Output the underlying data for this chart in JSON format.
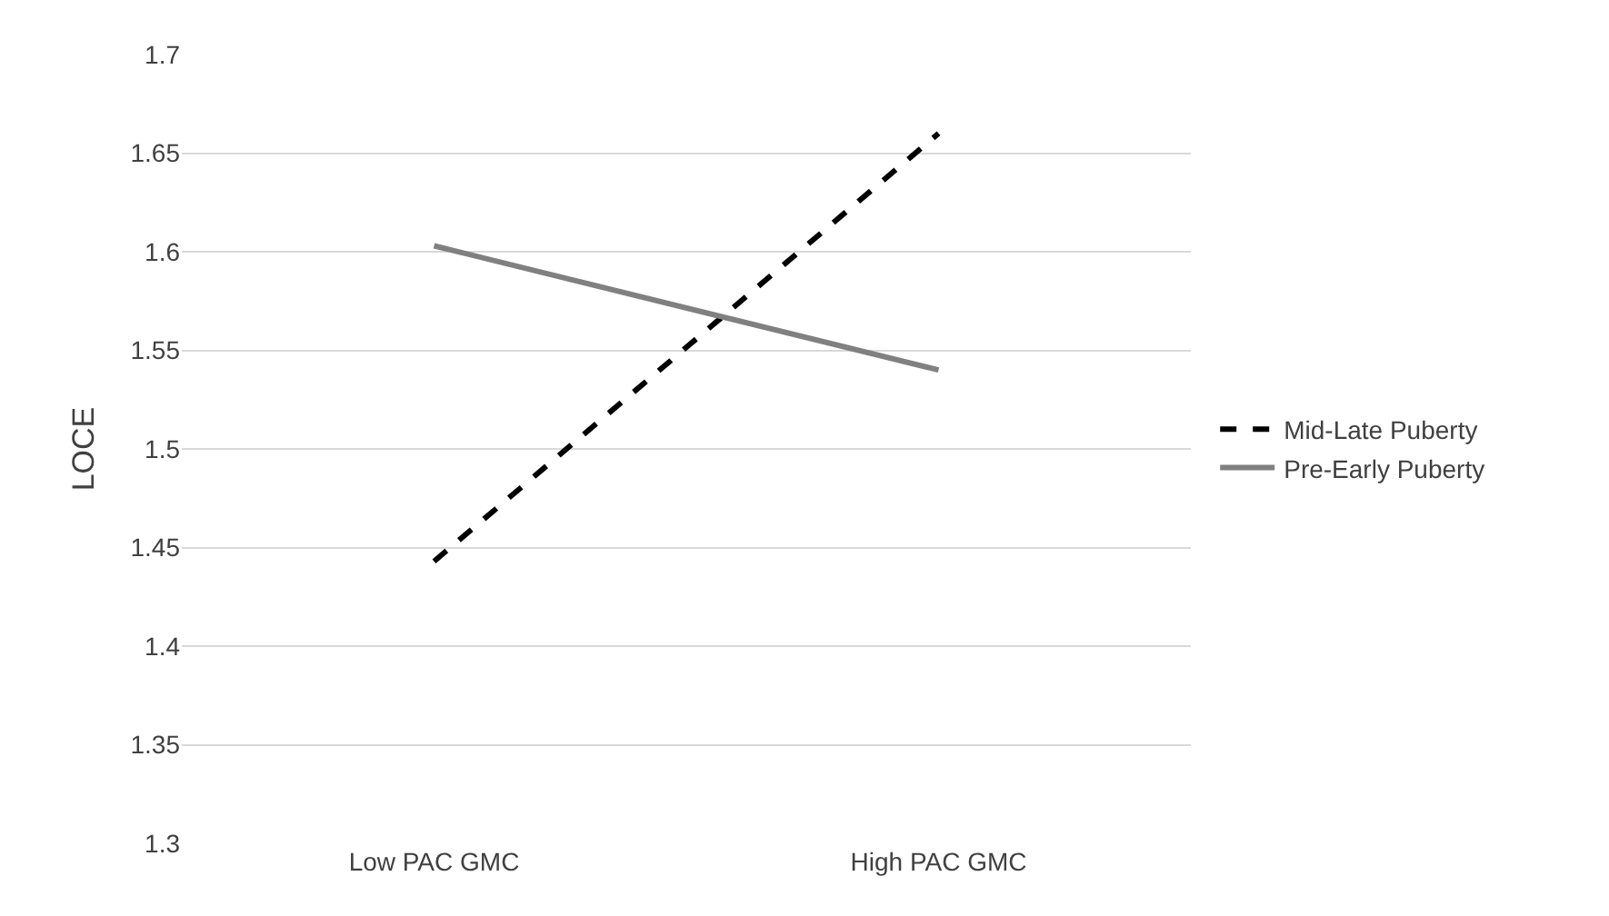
{
  "chart_data": {
    "type": "line",
    "ylabel": "LOCE",
    "categories": [
      "Low PAC GMC",
      "High PAC GMC"
    ],
    "series": [
      {
        "name": "Mid-Late Puberty",
        "color": "#000000",
        "line_style": "dashed",
        "values": [
          1.443,
          1.66
        ]
      },
      {
        "name": "Pre-Early Puberty",
        "color": "#808080",
        "line_style": "solid",
        "values": [
          1.603,
          1.54
        ]
      }
    ],
    "ylim": [
      1.3,
      1.7
    ],
    "yticks": [
      1.3,
      1.35,
      1.4,
      1.45,
      1.5,
      1.55,
      1.6,
      1.65,
      1.7
    ],
    "grid": "y",
    "legend": "right",
    "marker": "none"
  }
}
